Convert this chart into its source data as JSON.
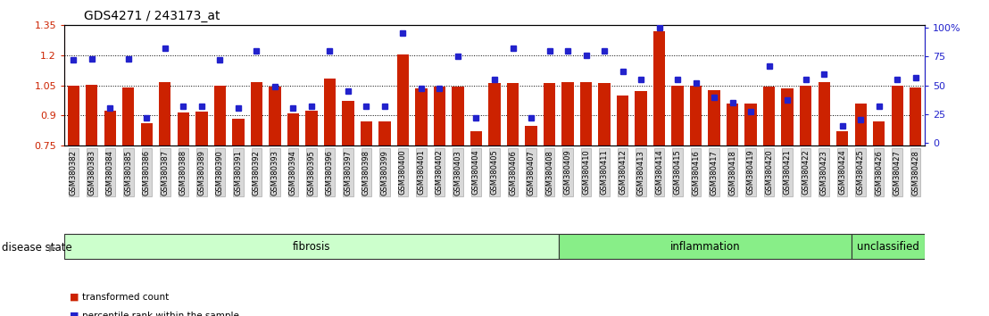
{
  "title": "GDS4271 / 243173_at",
  "samples": [
    "GSM380382",
    "GSM380383",
    "GSM380384",
    "GSM380385",
    "GSM380386",
    "GSM380387",
    "GSM380388",
    "GSM380389",
    "GSM380390",
    "GSM380391",
    "GSM380392",
    "GSM380393",
    "GSM380394",
    "GSM380395",
    "GSM380396",
    "GSM380397",
    "GSM380398",
    "GSM380399",
    "GSM380400",
    "GSM380401",
    "GSM380402",
    "GSM380403",
    "GSM380404",
    "GSM380405",
    "GSM380406",
    "GSM380407",
    "GSM380408",
    "GSM380409",
    "GSM380410",
    "GSM380411",
    "GSM380412",
    "GSM380413",
    "GSM380414",
    "GSM380415",
    "GSM380416",
    "GSM380417",
    "GSM380418",
    "GSM380419",
    "GSM380420",
    "GSM380421",
    "GSM380422",
    "GSM380423",
    "GSM380424",
    "GSM380425",
    "GSM380426",
    "GSM380427",
    "GSM380428"
  ],
  "bar_values": [
    1.047,
    1.053,
    0.923,
    1.04,
    0.86,
    1.065,
    0.915,
    0.92,
    1.047,
    0.885,
    1.065,
    1.043,
    0.908,
    0.925,
    1.085,
    0.973,
    0.87,
    0.87,
    1.205,
    1.033,
    1.045,
    1.045,
    0.82,
    1.06,
    1.06,
    0.848,
    1.06,
    1.065,
    1.068,
    1.06,
    1.0,
    1.02,
    1.32,
    1.048,
    1.047,
    1.025,
    0.96,
    0.96,
    1.045,
    1.035,
    1.047,
    1.065,
    0.82,
    0.96,
    0.87,
    1.047,
    1.04
  ],
  "percentile_values": [
    72,
    73,
    30,
    73,
    22,
    82,
    32,
    32,
    72,
    30,
    80,
    49,
    30,
    32,
    80,
    45,
    32,
    32,
    95,
    47,
    47,
    75,
    22,
    55,
    82,
    22,
    80,
    80,
    76,
    80,
    62,
    55,
    100,
    55,
    52,
    40,
    35,
    27,
    67,
    37,
    55,
    60,
    15,
    20,
    32,
    55,
    57
  ],
  "groups": [
    {
      "label": "fibrosis",
      "start": 0,
      "end": 26,
      "color": "#ccffcc"
    },
    {
      "label": "inflammation",
      "start": 27,
      "end": 42,
      "color": "#88ee88"
    },
    {
      "label": "unclassified",
      "start": 43,
      "end": 46,
      "color": "#88ee88"
    }
  ],
  "y_min": 0.75,
  "y_max": 1.35,
  "y_ticks": [
    0.75,
    0.9,
    1.05,
    1.2,
    1.35
  ],
  "right_y_ticks": [
    0,
    25,
    50,
    75,
    100
  ],
  "right_y_labels": [
    "0",
    "25",
    "50",
    "75",
    "100%"
  ],
  "bar_color": "#CC2200",
  "dot_color": "#2222CC",
  "label_color_left": "#CC2200",
  "label_color_right": "#2222CC",
  "disease_state_label": "disease state",
  "legend_bar_label": "transformed count",
  "legend_dot_label": "percentile rank within the sample"
}
